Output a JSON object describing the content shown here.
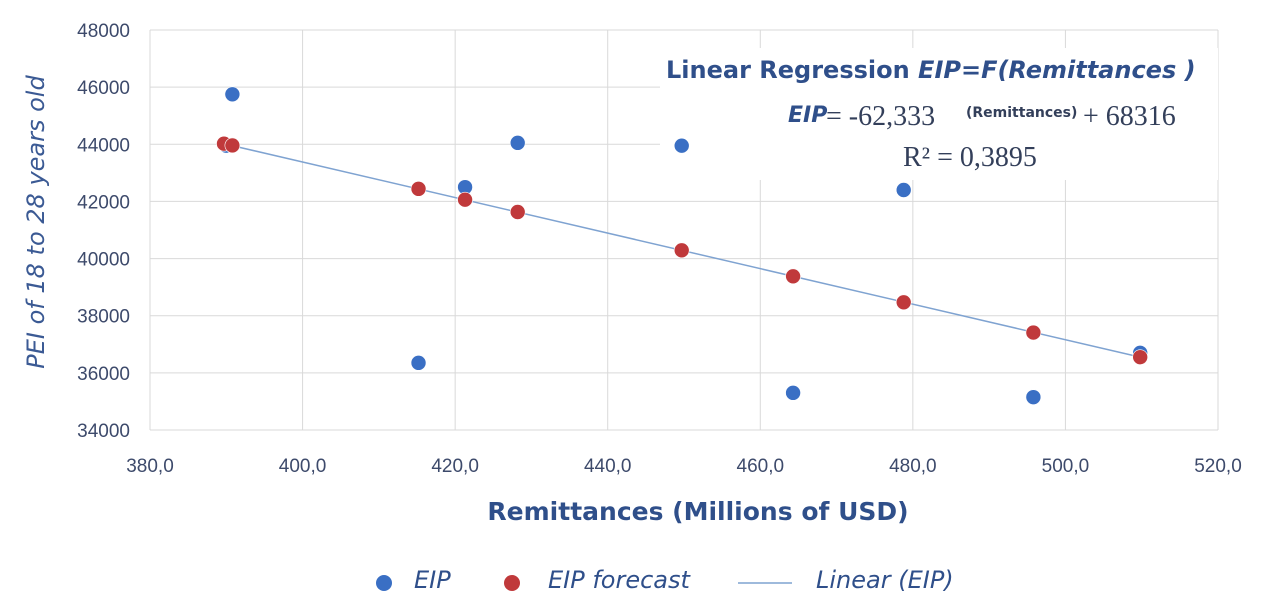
{
  "chart_data": {
    "type": "scatter",
    "title": "",
    "xlabel": "Remittances (Millions of USD)",
    "ylabel": "PEI of  18 to 28 years old",
    "xlim": [
      380,
      520
    ],
    "ylim": [
      34000,
      48000
    ],
    "xticks": [
      "380,0",
      "400,0",
      "420,0",
      "440,0",
      "460,0",
      "480,0",
      "500,0",
      "520,0"
    ],
    "yticks": [
      "34000",
      "36000",
      "38000",
      "40000",
      "42000",
      "44000",
      "46000",
      "48000"
    ],
    "grid": true,
    "legend_position": "bottom",
    "series": [
      {
        "name": "EIP",
        "color": "#3a6fc4",
        "points": [
          [
            390.8,
            45750
          ],
          [
            390.0,
            43950
          ],
          [
            415.2,
            36350
          ],
          [
            421.3,
            42500
          ],
          [
            428.2,
            44050
          ],
          [
            449.7,
            43950
          ],
          [
            464.3,
            35300
          ],
          [
            478.8,
            42400
          ],
          [
            495.8,
            35150
          ],
          [
            509.8,
            36700
          ]
        ]
      },
      {
        "name": "EIP forecast",
        "color": "#c0393b",
        "points": [
          [
            389.7,
            44020
          ],
          [
            390.8,
            43960
          ],
          [
            415.2,
            42440
          ],
          [
            421.3,
            42060
          ],
          [
            428.2,
            41630
          ],
          [
            449.7,
            40290
          ],
          [
            464.3,
            39380
          ],
          [
            478.8,
            38470
          ],
          [
            495.8,
            37410
          ],
          [
            509.8,
            36550
          ]
        ]
      },
      {
        "name": "Linear (EIP)",
        "type": "line",
        "color": "#7fa3d1",
        "points": [
          [
            389.7,
            44020
          ],
          [
            509.8,
            36550
          ]
        ]
      }
    ],
    "annotation": {
      "title": "Linear Regression ",
      "title_italic": "EIP=F(Remittances  )",
      "eq_var": "EIP",
      "eq_main": " = -62,333",
      "eq_sub": "(Remittances)",
      "eq_tail": "+ 68316",
      "r2": "R² = 0,3895"
    }
  }
}
